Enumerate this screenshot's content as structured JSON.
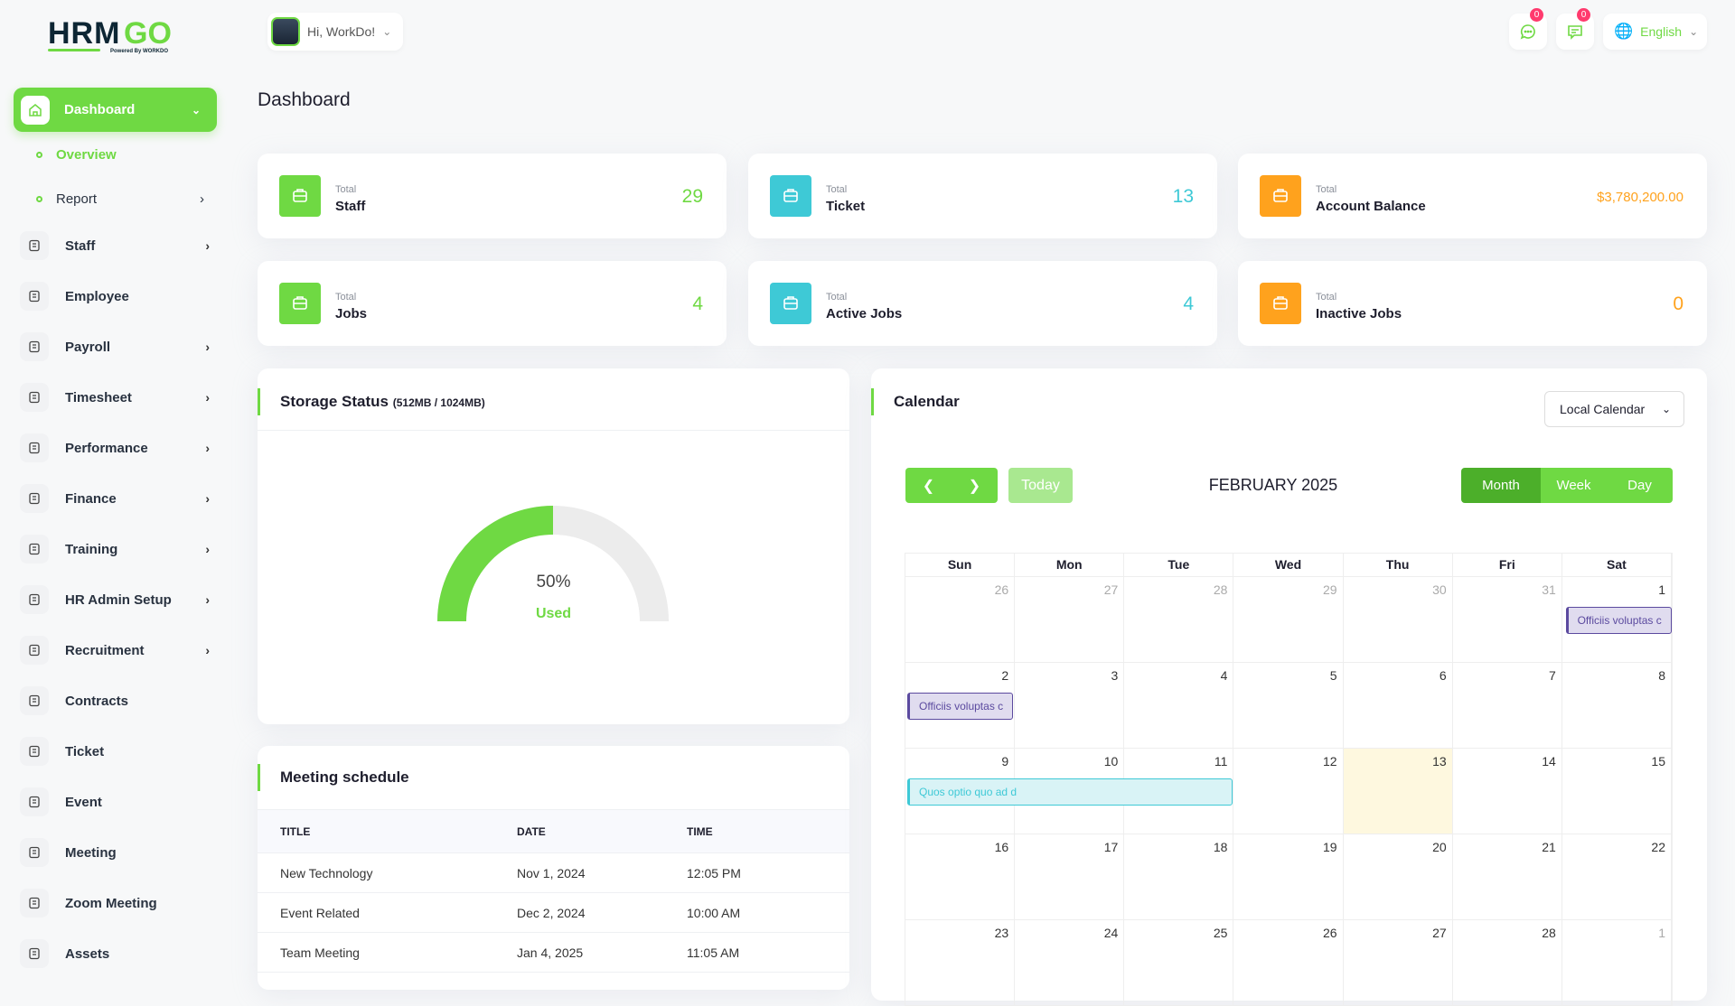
{
  "logo": {
    "text": "HRMGO",
    "tagline": "Powered By WORKDO"
  },
  "header": {
    "greeting": "Hi, WorkDo!",
    "chat_badge": "0",
    "message_badge": "0",
    "language": "English"
  },
  "sidebar": {
    "active": {
      "label": "Dashboard",
      "icon": "home-icon"
    },
    "sub_items": [
      {
        "label": "Overview",
        "active": true
      },
      {
        "label": "Report",
        "has_children": true
      }
    ],
    "items": [
      {
        "label": "Staff",
        "icon": "users-icon",
        "has_children": true
      },
      {
        "label": "Employee",
        "icon": "user-icon",
        "has_children": false
      },
      {
        "label": "Payroll",
        "icon": "receipt-icon",
        "has_children": true
      },
      {
        "label": "Timesheet",
        "icon": "clock-icon",
        "has_children": true
      },
      {
        "label": "Performance",
        "icon": "performance-icon",
        "has_children": true
      },
      {
        "label": "Finance",
        "icon": "wallet-icon",
        "has_children": true
      },
      {
        "label": "Training",
        "icon": "graduation-cap-icon",
        "has_children": true
      },
      {
        "label": "HR Admin Setup",
        "icon": "user-plus-icon",
        "has_children": true
      },
      {
        "label": "Recruitment",
        "icon": "clipboard-icon",
        "has_children": true
      },
      {
        "label": "Contracts",
        "icon": "contract-icon",
        "has_children": false
      },
      {
        "label": "Ticket",
        "icon": "ticket-icon",
        "has_children": false
      },
      {
        "label": "Event",
        "icon": "calendar-icon",
        "has_children": false
      },
      {
        "label": "Meeting",
        "icon": "calendar-clock-icon",
        "has_children": false
      },
      {
        "label": "Zoom Meeting",
        "icon": "video-icon",
        "has_children": false
      },
      {
        "label": "Assets",
        "icon": "assets-icon",
        "has_children": false
      }
    ]
  },
  "page": {
    "title": "Dashboard"
  },
  "stats": [
    {
      "small": "Total",
      "label": "Staff",
      "value": "29",
      "color": "#6fd943",
      "icon": "users-icon"
    },
    {
      "small": "Total",
      "label": "Ticket",
      "value": "13",
      "color": "#3ec9d6",
      "icon": "ticket-icon"
    },
    {
      "small": "Total",
      "label": "Account Balance",
      "value": "$3,780,200.00",
      "color": "#ffa21d",
      "icon": "wallet-icon"
    },
    {
      "small": "Total",
      "label": "Jobs",
      "value": "4",
      "color": "#6fd943",
      "icon": "briefcase-icon"
    },
    {
      "small": "Total",
      "label": "Active Jobs",
      "value": "4",
      "color": "#3ec9d6",
      "icon": "active-jobs-icon"
    },
    {
      "small": "Total",
      "label": "Inactive Jobs",
      "value": "0",
      "color": "#ffa21d",
      "icon": "inactive-jobs-icon"
    }
  ],
  "storage": {
    "title": "Storage Status",
    "detail": "(512MB / 1024MB)",
    "percent_label": "50%",
    "percent": 50,
    "used_label": "Used"
  },
  "meetings": {
    "title": "Meeting schedule",
    "columns": [
      "TITLE",
      "DATE",
      "TIME"
    ],
    "rows": [
      [
        "New Technology",
        "Nov 1, 2024",
        "12:05 PM"
      ],
      [
        "Event Related",
        "Dec 2, 2024",
        "10:00 AM"
      ],
      [
        "Team Meeting",
        "Jan 4, 2025",
        "11:05 AM"
      ]
    ]
  },
  "calendar": {
    "title": "Calendar",
    "source": "Local Calendar",
    "today_label": "Today",
    "month_title": "FEBRUARY 2025",
    "views": [
      "Month",
      "Week",
      "Day"
    ],
    "active_view": "Month",
    "weekdays": [
      "Sun",
      "Mon",
      "Tue",
      "Wed",
      "Thu",
      "Fri",
      "Sat"
    ],
    "weeks": [
      [
        26,
        27,
        28,
        29,
        30,
        31,
        1
      ],
      [
        2,
        3,
        4,
        5,
        6,
        7,
        8
      ],
      [
        9,
        10,
        11,
        12,
        13,
        14,
        15
      ],
      [
        16,
        17,
        18,
        19,
        20,
        21,
        22
      ],
      [
        23,
        24,
        25,
        26,
        27,
        28,
        1
      ]
    ],
    "today": 13,
    "events": [
      {
        "title": "Officiis voluptas c",
        "week": 0,
        "start": 6,
        "span": 1,
        "color": "#5b4a9f",
        "bg": "#e0dcef"
      },
      {
        "title": "Officiis voluptas c",
        "week": 1,
        "start": 0,
        "span": 1,
        "color": "#5b4a9f",
        "bg": "#e0dcef"
      },
      {
        "title": "Quos optio quo ad d",
        "week": 2,
        "start": 0,
        "span": 3,
        "color": "#3ec9d6",
        "bg": "#d9f3f6"
      }
    ]
  }
}
